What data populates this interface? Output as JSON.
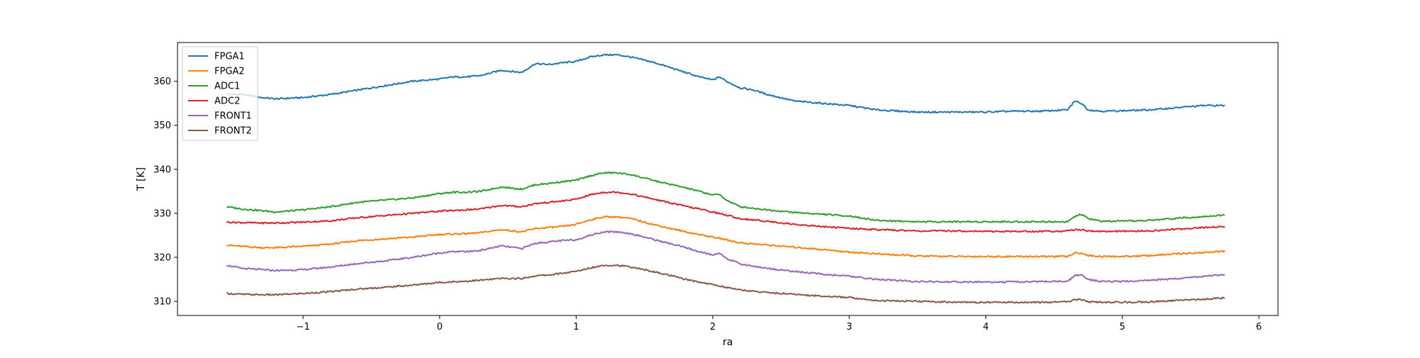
{
  "chart_data": {
    "type": "line",
    "title": "",
    "xlabel": "ra",
    "ylabel": "T [K]",
    "xlim": [
      -1.92,
      6.14
    ],
    "ylim": [
      306.8,
      368.8
    ],
    "xticks": [
      -1,
      0,
      1,
      2,
      3,
      4,
      5,
      6
    ],
    "xtick_labels": [
      "−1",
      "0",
      "1",
      "2",
      "3",
      "4",
      "5",
      "6"
    ],
    "yticks": [
      310,
      320,
      330,
      340,
      350,
      360
    ],
    "ytick_labels": [
      "310",
      "320",
      "330",
      "340",
      "350",
      "360"
    ],
    "grid": false,
    "legend_position": "top-left",
    "series": [
      {
        "name": "FPGA1",
        "color": "#1f77b4",
        "x": [
          -1.56,
          -1.45,
          -1.3,
          -1.2,
          -1.0,
          -0.8,
          -0.6,
          -0.4,
          -0.2,
          0.0,
          0.1,
          0.2,
          0.3,
          0.45,
          0.6,
          0.7,
          0.8,
          0.9,
          1.0,
          1.1,
          1.2,
          1.3,
          1.4,
          1.5,
          1.6,
          1.7,
          1.8,
          1.9,
          2.0,
          2.05,
          2.1,
          2.2,
          2.3,
          2.4,
          2.6,
          2.8,
          3.0,
          3.2,
          3.5,
          3.8,
          4.0,
          4.2,
          4.4,
          4.6,
          4.65,
          4.7,
          4.75,
          4.85,
          5.0,
          5.2,
          5.4,
          5.6,
          5.75
        ],
        "y": [
          357,
          357,
          356.3,
          356,
          356.3,
          357,
          358,
          359,
          360,
          360.5,
          361,
          361,
          361.3,
          362.5,
          362,
          364,
          363.8,
          364.2,
          364.5,
          365.5,
          366,
          366,
          365.5,
          364.8,
          364,
          363,
          362,
          361,
          360.3,
          361,
          360,
          358.5,
          358,
          357,
          355.5,
          355,
          354.5,
          353.5,
          353,
          353,
          353,
          353.2,
          353.2,
          353.5,
          355.5,
          355,
          353.5,
          353.2,
          353.3,
          353.5,
          354,
          354.5,
          354.5
        ]
      },
      {
        "name": "FPGA2",
        "color": "#ff7f0e",
        "x": [
          -1.56,
          -1.45,
          -1.3,
          -1.2,
          -1.0,
          -0.8,
          -0.6,
          -0.4,
          -0.2,
          0.0,
          0.2,
          0.3,
          0.45,
          0.6,
          0.7,
          0.8,
          0.9,
          1.0,
          1.1,
          1.2,
          1.3,
          1.4,
          1.5,
          1.6,
          1.7,
          1.8,
          1.9,
          2.0,
          2.1,
          2.2,
          2.4,
          2.6,
          2.8,
          3.0,
          3.2,
          3.5,
          3.8,
          4.0,
          4.2,
          4.4,
          4.6,
          4.65,
          4.7,
          4.75,
          4.85,
          5.0,
          5.2,
          5.4,
          5.6,
          5.75
        ],
        "y": [
          322.8,
          322.5,
          322.2,
          322.2,
          322.5,
          323,
          323.8,
          324.2,
          324.6,
          325.2,
          325.4,
          325.6,
          326.3,
          325.8,
          326.5,
          326.8,
          327,
          327.5,
          328.5,
          329.2,
          329.2,
          328.8,
          328,
          327.2,
          326.5,
          325.8,
          325.2,
          324.6,
          324,
          323.3,
          322.8,
          322.3,
          321.8,
          321.2,
          320.8,
          320.3,
          320.2,
          320.2,
          320.2,
          320.2,
          320.2,
          321,
          321,
          320.4,
          320.2,
          320.2,
          320.4,
          320.8,
          321.1,
          321.4
        ]
      },
      {
        "name": "ADC1",
        "color": "#2ca02c",
        "x": [
          -1.56,
          -1.45,
          -1.3,
          -1.2,
          -1.0,
          -0.8,
          -0.6,
          -0.4,
          -0.2,
          0.0,
          0.1,
          0.2,
          0.3,
          0.45,
          0.6,
          0.7,
          0.8,
          0.9,
          1.0,
          1.1,
          1.2,
          1.3,
          1.4,
          1.5,
          1.6,
          1.7,
          1.8,
          1.9,
          2.0,
          2.05,
          2.1,
          2.2,
          2.4,
          2.6,
          2.8,
          3.0,
          3.2,
          3.5,
          3.8,
          4.0,
          4.2,
          4.4,
          4.6,
          4.65,
          4.7,
          4.75,
          4.85,
          5.0,
          5.2,
          5.4,
          5.6,
          5.75
        ],
        "y": [
          331.5,
          331,
          330.6,
          330.3,
          330.8,
          331.5,
          332.5,
          333,
          333.5,
          334.5,
          334.8,
          334.8,
          335,
          336,
          335.5,
          336.5,
          336.8,
          337.2,
          337.5,
          338.5,
          339.2,
          339.2,
          338.8,
          338,
          337.2,
          336.5,
          335.8,
          335,
          334.2,
          334.3,
          333,
          331.5,
          330.8,
          330.2,
          329.8,
          329.4,
          328.4,
          328.1,
          328.1,
          328.1,
          328.1,
          328.1,
          328.1,
          329.2,
          329.8,
          328.8,
          328.2,
          328.2,
          328.4,
          328.9,
          329.3,
          329.6
        ]
      },
      {
        "name": "ADC2",
        "color": "#d62728",
        "x": [
          -1.56,
          -1.45,
          -1.3,
          -1.2,
          -1.0,
          -0.8,
          -0.6,
          -0.4,
          -0.2,
          0.0,
          0.2,
          0.3,
          0.45,
          0.6,
          0.7,
          0.8,
          0.9,
          1.0,
          1.1,
          1.2,
          1.3,
          1.4,
          1.5,
          1.6,
          1.7,
          1.8,
          1.9,
          2.0,
          2.1,
          2.2,
          2.4,
          2.6,
          2.8,
          3.0,
          3.2,
          3.5,
          3.8,
          4.0,
          4.2,
          4.4,
          4.6,
          4.65,
          4.7,
          4.75,
          4.85,
          5.0,
          5.2,
          5.4,
          5.6,
          5.75
        ],
        "y": [
          328,
          327.9,
          327.8,
          327.8,
          328,
          328.3,
          329,
          329.5,
          330,
          330.5,
          330.8,
          331,
          331.8,
          331.5,
          332.2,
          332.5,
          332.8,
          333.2,
          334.2,
          334.8,
          334.8,
          334.4,
          333.7,
          333,
          332.3,
          331.6,
          331,
          330.3,
          329.6,
          328.8,
          328.2,
          327.5,
          327,
          326.6,
          326.3,
          326,
          326,
          325.9,
          325.9,
          325.9,
          326,
          326.3,
          326.3,
          326,
          325.9,
          325.9,
          326,
          326.4,
          326.8,
          327
        ]
      },
      {
        "name": "FRONT1",
        "color": "#9467bd",
        "x": [
          -1.56,
          -1.45,
          -1.3,
          -1.2,
          -1.0,
          -0.8,
          -0.6,
          -0.4,
          -0.2,
          0.0,
          0.1,
          0.2,
          0.3,
          0.45,
          0.6,
          0.7,
          0.8,
          0.9,
          1.0,
          1.1,
          1.2,
          1.3,
          1.4,
          1.5,
          1.6,
          1.7,
          1.8,
          1.9,
          2.0,
          2.05,
          2.1,
          2.2,
          2.4,
          2.6,
          2.8,
          3.0,
          3.2,
          3.5,
          3.8,
          4.0,
          4.2,
          4.4,
          4.6,
          4.65,
          4.7,
          4.75,
          4.85,
          5.0,
          5.2,
          5.4,
          5.6,
          5.75
        ],
        "y": [
          318.2,
          317.5,
          317.2,
          317,
          317.2,
          317.8,
          318.6,
          319.2,
          320,
          321,
          321.3,
          321.3,
          321.6,
          322.6,
          322,
          323.2,
          323.5,
          323.8,
          324,
          325,
          325.8,
          325.8,
          325.4,
          324.6,
          323.8,
          323,
          322.2,
          321.3,
          320.5,
          321,
          319.8,
          318.5,
          317.5,
          316.8,
          316.2,
          315.7,
          315,
          314.5,
          314.4,
          314.4,
          314.4,
          314.5,
          314.6,
          315.8,
          316,
          315,
          314.5,
          314.5,
          314.8,
          315.2,
          315.7,
          316
        ]
      },
      {
        "name": "FRONT2",
        "color": "#8c564b",
        "x": [
          -1.56,
          -1.45,
          -1.3,
          -1.2,
          -1.0,
          -0.8,
          -0.6,
          -0.4,
          -0.2,
          0.0,
          0.2,
          0.3,
          0.45,
          0.6,
          0.7,
          0.8,
          0.9,
          1.0,
          1.1,
          1.2,
          1.3,
          1.4,
          1.5,
          1.6,
          1.7,
          1.8,
          1.9,
          2.0,
          2.1,
          2.2,
          2.4,
          2.6,
          2.8,
          3.0,
          3.2,
          3.5,
          3.8,
          4.0,
          4.2,
          4.4,
          4.6,
          4.65,
          4.7,
          4.75,
          4.85,
          5.0,
          5.2,
          5.4,
          5.6,
          5.75
        ],
        "y": [
          311.8,
          311.6,
          311.5,
          311.5,
          311.8,
          312.2,
          312.8,
          313.2,
          313.7,
          314.3,
          314.6,
          314.8,
          315.2,
          315.2,
          315.8,
          316,
          316.4,
          316.8,
          317.6,
          318.2,
          318.2,
          317.8,
          317.2,
          316.5,
          315.8,
          315,
          314.4,
          313.8,
          313.2,
          312.6,
          312,
          311.6,
          311.2,
          310.9,
          310.2,
          310,
          309.8,
          309.8,
          309.8,
          309.8,
          309.9,
          310.4,
          310.4,
          309.9,
          309.8,
          309.8,
          309.9,
          310.2,
          310.5,
          310.8
        ]
      }
    ]
  }
}
